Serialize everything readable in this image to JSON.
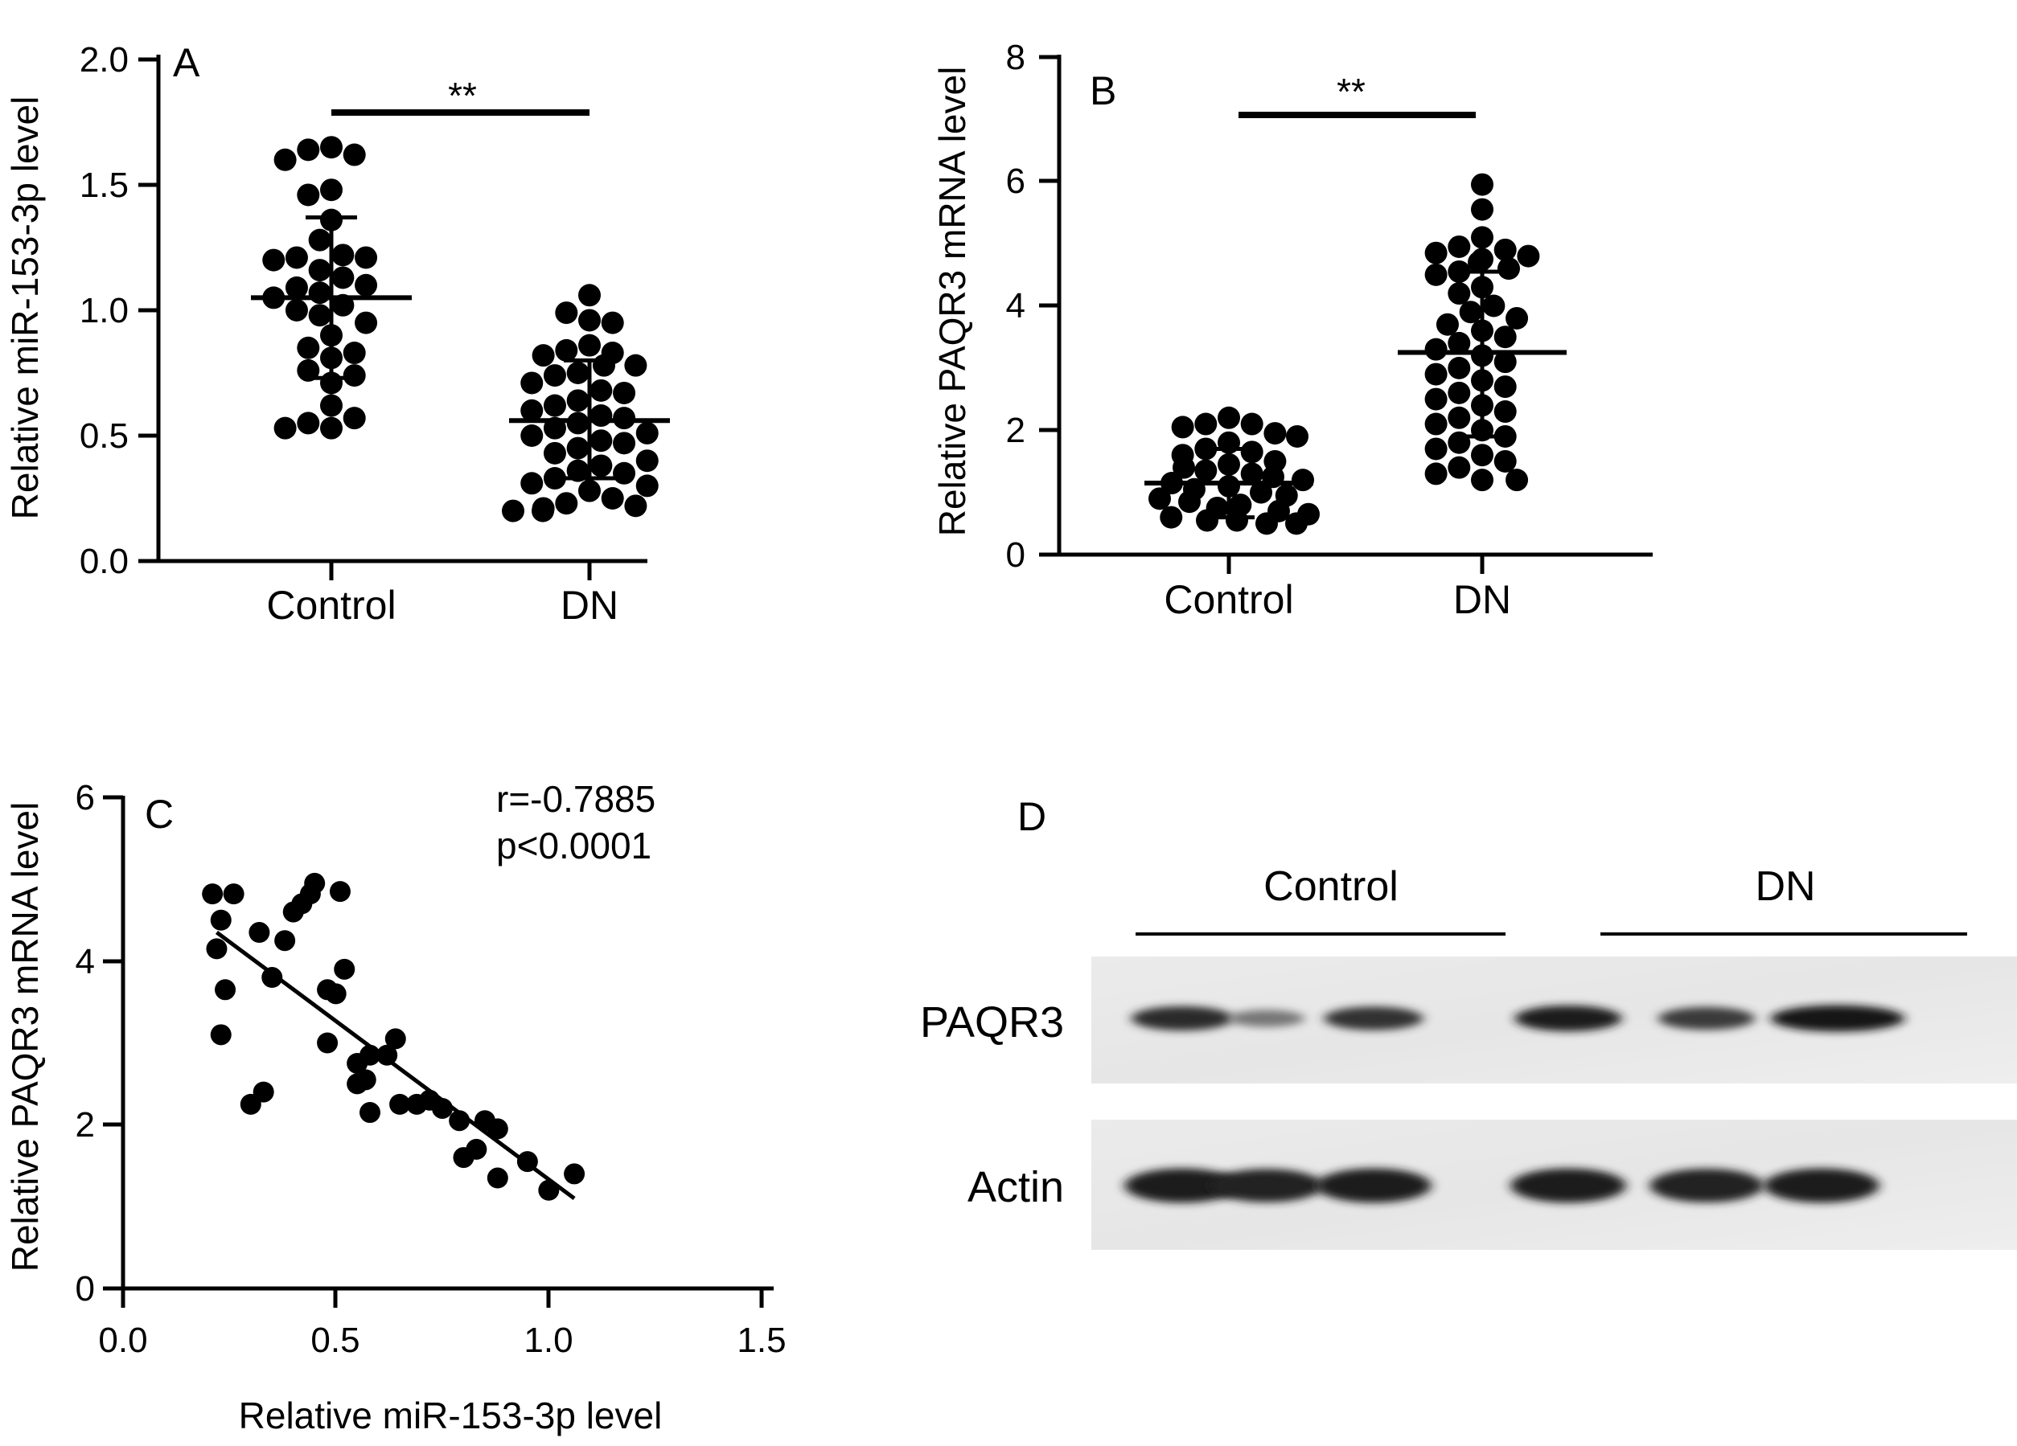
{
  "figure": {
    "panel_letters": [
      "A",
      "B",
      "C",
      "D"
    ]
  },
  "chart_data": [
    {
      "panel": "A",
      "type": "scatter",
      "ylabel": "Relative miR-153-3p level",
      "ylim": [
        0,
        2
      ],
      "yticks": [
        "0.0",
        "0.5",
        "1.0",
        "1.5",
        "2.0"
      ],
      "categories": [
        "Control",
        "DN"
      ],
      "significance": "**",
      "groups": [
        {
          "name": "Control",
          "mean": 1.05,
          "sd_low": 0.73,
          "sd_high": 1.37,
          "values": [
            1.65,
            1.64,
            1.62,
            1.6,
            1.48,
            1.46,
            1.36,
            1.28,
            1.22,
            1.21,
            1.21,
            1.2,
            1.16,
            1.13,
            1.1,
            1.09,
            1.07,
            1.05,
            1.02,
            1.0,
            0.98,
            0.95,
            0.9,
            0.85,
            0.83,
            0.81,
            0.76,
            0.74,
            0.71,
            0.62,
            0.57,
            0.55,
            0.53,
            0.53
          ]
        },
        {
          "name": "DN",
          "mean": 0.56,
          "sd_low": 0.33,
          "sd_high": 0.8,
          "values": [
            1.06,
            0.99,
            0.96,
            0.95,
            0.86,
            0.84,
            0.83,
            0.82,
            0.78,
            0.78,
            0.75,
            0.74,
            0.71,
            0.68,
            0.67,
            0.64,
            0.62,
            0.6,
            0.58,
            0.57,
            0.55,
            0.53,
            0.51,
            0.5,
            0.48,
            0.47,
            0.45,
            0.43,
            0.4,
            0.38,
            0.36,
            0.35,
            0.33,
            0.31,
            0.3,
            0.28,
            0.25,
            0.23,
            0.22,
            0.21,
            0.2,
            0.2
          ]
        }
      ]
    },
    {
      "panel": "B",
      "type": "scatter",
      "ylabel": "Relative PAQR3 mRNA level",
      "ylim": [
        0,
        8
      ],
      "yticks": [
        "0",
        "2",
        "4",
        "6",
        "8"
      ],
      "categories": [
        "Control",
        "DN"
      ],
      "significance": "**",
      "groups": [
        {
          "name": "Control",
          "mean": 1.15,
          "sd_low": 0.6,
          "sd_high": 1.7,
          "values": [
            2.2,
            2.1,
            2.05,
            2.1,
            1.95,
            1.9,
            1.8,
            1.7,
            1.65,
            1.6,
            1.5,
            1.45,
            1.4,
            1.35,
            1.3,
            1.25,
            1.2,
            1.15,
            1.1,
            1.05,
            1.0,
            0.95,
            0.9,
            0.85,
            0.8,
            0.75,
            0.7,
            0.65,
            0.6,
            0.55,
            0.55,
            0.5,
            0.5
          ]
        },
        {
          "name": "DN",
          "mean": 3.25,
          "sd_low": 1.9,
          "sd_high": 4.55,
          "values": [
            5.95,
            5.55,
            5.1,
            4.95,
            4.9,
            4.85,
            4.8,
            4.75,
            4.7,
            4.6,
            4.55,
            4.5,
            4.3,
            4.2,
            4.0,
            3.9,
            3.8,
            3.7,
            3.6,
            3.5,
            3.4,
            3.3,
            3.2,
            3.1,
            3.0,
            2.9,
            2.8,
            2.7,
            2.6,
            2.5,
            2.4,
            2.3,
            2.2,
            2.1,
            2.0,
            1.9,
            1.8,
            1.7,
            1.6,
            1.5,
            1.4,
            1.3,
            1.2,
            1.2
          ]
        }
      ]
    },
    {
      "panel": "C",
      "type": "scatter",
      "xlabel": "Relative miR-153-3p level",
      "ylabel": "Relative PAQR3 mRNA level",
      "xlim": [
        0,
        1.5
      ],
      "ylim": [
        0,
        6
      ],
      "xticks": [
        "0.0",
        "0.5",
        "1.0",
        "1.5"
      ],
      "yticks": [
        "0",
        "2",
        "4",
        "6"
      ],
      "annotations": [
        "r=-0.7885",
        "p<0.0001"
      ],
      "fit_line": {
        "x": [
          0.22,
          1.06
        ],
        "y": [
          4.35,
          1.1
        ]
      },
      "points": [
        [
          0.21,
          4.82
        ],
        [
          0.26,
          4.82
        ],
        [
          0.23,
          4.5
        ],
        [
          0.22,
          4.15
        ],
        [
          0.24,
          3.65
        ],
        [
          0.23,
          3.1
        ],
        [
          0.32,
          4.35
        ],
        [
          0.35,
          3.8
        ],
        [
          0.38,
          4.25
        ],
        [
          0.4,
          4.6
        ],
        [
          0.42,
          4.7
        ],
        [
          0.44,
          4.82
        ],
        [
          0.45,
          4.95
        ],
        [
          0.51,
          4.85
        ],
        [
          0.48,
          3.65
        ],
        [
          0.5,
          3.6
        ],
        [
          0.52,
          3.9
        ],
        [
          0.48,
          3.0
        ],
        [
          0.3,
          2.25
        ],
        [
          0.33,
          2.4
        ],
        [
          0.55,
          2.75
        ],
        [
          0.57,
          2.55
        ],
        [
          0.58,
          2.85
        ],
        [
          0.55,
          2.5
        ],
        [
          0.58,
          2.15
        ],
        [
          0.62,
          2.85
        ],
        [
          0.64,
          3.05
        ],
        [
          0.65,
          2.25
        ],
        [
          0.69,
          2.25
        ],
        [
          0.72,
          2.3
        ],
        [
          0.75,
          2.2
        ],
        [
          0.79,
          2.05
        ],
        [
          0.8,
          1.6
        ],
        [
          0.83,
          1.7
        ],
        [
          0.85,
          2.05
        ],
        [
          0.88,
          1.95
        ],
        [
          0.88,
          1.35
        ],
        [
          0.95,
          1.55
        ],
        [
          1.0,
          1.2
        ],
        [
          1.06,
          1.4
        ]
      ]
    }
  ],
  "blot": {
    "groups": [
      "Control",
      "DN"
    ],
    "rows": [
      {
        "label": "PAQR3",
        "intensities": [
          0.85,
          0.35,
          0.8,
          0.95,
          0.75,
          1.0
        ]
      },
      {
        "label": "Actin",
        "intensities": [
          0.95,
          0.9,
          0.95,
          0.95,
          0.92,
          0.95
        ]
      }
    ]
  }
}
